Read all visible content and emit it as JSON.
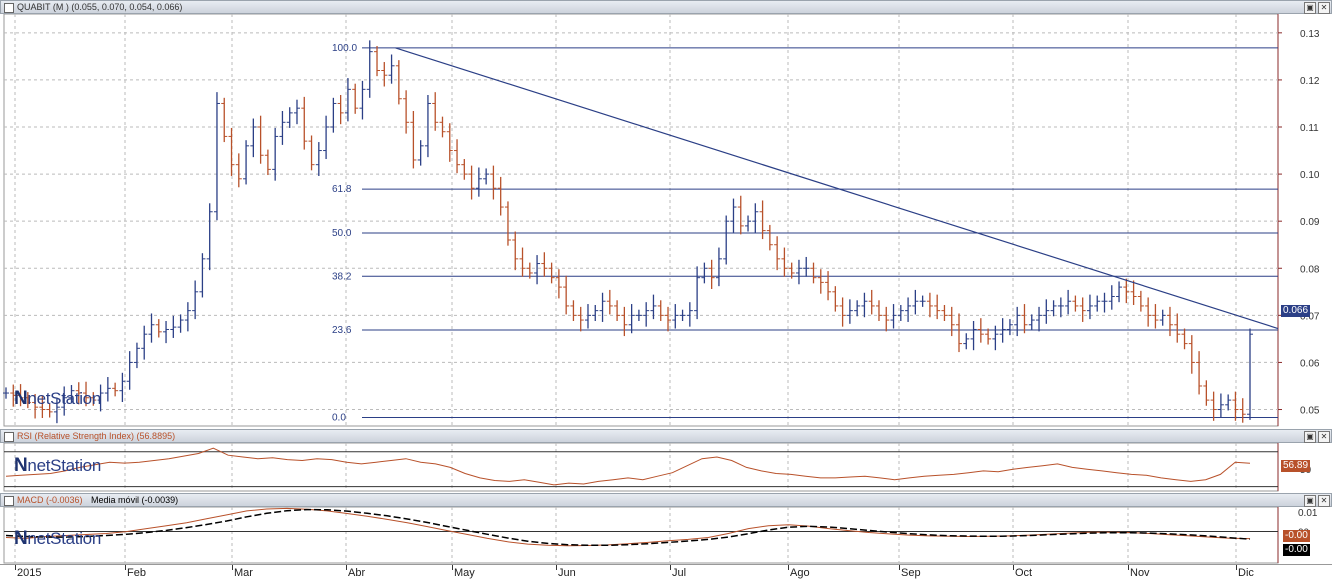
{
  "panels": {
    "price": {
      "title": "QUABIT (M ) (0.055, 0.070, 0.054, 0.066)"
    },
    "rsi": {
      "title": "RSI (Relative Strength Index) (56.8895)"
    },
    "macd": {
      "title_a": "MACD (-0.0036)",
      "title_b": "Media móvil (-0.0039)"
    }
  },
  "logo": {
    "mark": "N",
    "text": "netStation"
  },
  "window_buttons": {
    "restore": "▣",
    "close": "✕"
  },
  "tags": {
    "price_last": "0.066",
    "rsi_last": "56.89",
    "macd_a": "-0.00",
    "macd_b": "-0.00"
  },
  "colors": {
    "up": "#2b3f86",
    "down": "#b8512a",
    "line": "#2b3f86",
    "rsi": "#b8512a",
    "macd": "#b8512a",
    "signal": "#000000"
  },
  "chart_data": [
    {
      "type": "bar",
      "subtype": "ohlc",
      "ylim": [
        0.0465,
        0.134
      ],
      "yticks": [
        0.05,
        0.06,
        0.07,
        0.08,
        0.09,
        0.1,
        0.11,
        0.12,
        0.13
      ],
      "ytick_labels": [
        "0.05",
        "0.06",
        "0.07",
        "0.08",
        "0.09",
        "0.10",
        "0.11",
        "0.12",
        "0.13"
      ],
      "xlabels": [
        "2015",
        "Feb",
        "Mar",
        "Abr",
        "May",
        "Jun",
        "Jul",
        "Ago",
        "Sep",
        "Oct",
        "Nov",
        "Dic"
      ],
      "grid": true,
      "close": [
        0.0535,
        0.053,
        0.0525,
        0.0515,
        0.0505,
        0.05,
        0.0495,
        0.0505,
        0.0525,
        0.054,
        0.0535,
        0.0525,
        0.052,
        0.0535,
        0.0545,
        0.054,
        0.056,
        0.06,
        0.063,
        0.066,
        0.068,
        0.0665,
        0.067,
        0.0675,
        0.069,
        0.071,
        0.075,
        0.082,
        0.092,
        0.115,
        0.108,
        0.102,
        0.099,
        0.106,
        0.11,
        0.104,
        0.101,
        0.108,
        0.111,
        0.113,
        0.114,
        0.107,
        0.102,
        0.105,
        0.11,
        0.115,
        0.113,
        0.118,
        0.114,
        0.118,
        0.126,
        0.122,
        0.121,
        0.123,
        0.116,
        0.111,
        0.103,
        0.106,
        0.115,
        0.111,
        0.109,
        0.105,
        0.102,
        0.1,
        0.097,
        0.099,
        0.1,
        0.097,
        0.093,
        0.086,
        0.082,
        0.08,
        0.079,
        0.081,
        0.08,
        0.078,
        0.076,
        0.072,
        0.07,
        0.069,
        0.07,
        0.071,
        0.073,
        0.072,
        0.07,
        0.068,
        0.07,
        0.07,
        0.071,
        0.072,
        0.07,
        0.069,
        0.07,
        0.07,
        0.071,
        0.078,
        0.08,
        0.078,
        0.082,
        0.09,
        0.093,
        0.089,
        0.09,
        0.092,
        0.088,
        0.085,
        0.082,
        0.08,
        0.079,
        0.08,
        0.08,
        0.078,
        0.077,
        0.075,
        0.072,
        0.07,
        0.071,
        0.072,
        0.073,
        0.072,
        0.07,
        0.069,
        0.07,
        0.071,
        0.072,
        0.073,
        0.073,
        0.072,
        0.071,
        0.07,
        0.068,
        0.064,
        0.065,
        0.067,
        0.066,
        0.065,
        0.066,
        0.067,
        0.068,
        0.07,
        0.068,
        0.069,
        0.07,
        0.071,
        0.072,
        0.072,
        0.073,
        0.072,
        0.071,
        0.072,
        0.073,
        0.073,
        0.074,
        0.076,
        0.075,
        0.074,
        0.072,
        0.07,
        0.069,
        0.07,
        0.068,
        0.066,
        0.064,
        0.06,
        0.055,
        0.052,
        0.05,
        0.051,
        0.052,
        0.05,
        0.049,
        0.066
      ],
      "reference_lines": [
        {
          "label": "100.0",
          "value": 0.1268
        },
        {
          "label": "61.8",
          "value": 0.0968
        },
        {
          "label": "50.0",
          "value": 0.0875
        },
        {
          "label": "38.2",
          "value": 0.0783
        },
        {
          "label": "23.6",
          "value": 0.0669
        },
        {
          "label": "0.0",
          "value": 0.0483
        }
      ],
      "trendline": {
        "from": [
          53,
          0.1268
        ],
        "to": [
          177,
          0.0672
        ]
      }
    },
    {
      "type": "line",
      "name": "RSI",
      "ylim": [
        25,
        80
      ],
      "yticks": [
        50
      ],
      "ytick_labels": [
        "50"
      ],
      "levels": [
        70,
        30
      ],
      "values": [
        42,
        43,
        44,
        45,
        48,
        52,
        55,
        58,
        57,
        58,
        60,
        62,
        65,
        68,
        74,
        66,
        64,
        62,
        63,
        61,
        60,
        62,
        61,
        58,
        56,
        58,
        60,
        62,
        58,
        56,
        52,
        45,
        40,
        37,
        36,
        38,
        35,
        32,
        34,
        33,
        36,
        38,
        40,
        38,
        42,
        46,
        54,
        62,
        64,
        60,
        52,
        48,
        45,
        44,
        42,
        40,
        40,
        41,
        42,
        40,
        38,
        40,
        42,
        43,
        44,
        46,
        48,
        47,
        50,
        52,
        54,
        56,
        52,
        50,
        48,
        46,
        44,
        43,
        40,
        38,
        36,
        38,
        44,
        58,
        56.89
      ]
    },
    {
      "type": "line",
      "name": "MACD",
      "ylim": [
        -0.016,
        0.0125
      ],
      "yticks": [
        0.01,
        0.0
      ],
      "ytick_labels": [
        "0.01",
        "00"
      ],
      "zero_line": 0,
      "series": [
        {
          "values": [
            -0.003,
            -0.0035,
            -0.0025,
            -0.002,
            -0.0015,
            -0.001,
            0.0,
            0.0015,
            0.003,
            0.0045,
            0.0065,
            0.0085,
            0.0105,
            0.0115,
            0.0118,
            0.0114,
            0.0105,
            0.0092,
            0.0078,
            0.0062,
            0.0045,
            0.0025,
            0.0005,
            -0.0015,
            -0.0035,
            -0.0052,
            -0.0064,
            -0.007,
            -0.0072,
            -0.0071,
            -0.0068,
            -0.0062,
            -0.0055,
            -0.0047,
            -0.004,
            -0.003,
            -0.001,
            0.0015,
            0.003,
            0.0035,
            0.0028,
            0.0015,
            0.0005,
            -0.0005,
            -0.0012,
            -0.0018,
            -0.0022,
            -0.0024,
            -0.0025,
            -0.0024,
            -0.0022,
            -0.0018,
            -0.0013,
            -0.0008,
            -0.0004,
            -0.0003,
            -0.0005,
            -0.001,
            -0.0016,
            -0.0022,
            -0.0028,
            -0.0034,
            -0.0036
          ]
        },
        {
          "values": [
            -0.002,
            -0.0025,
            -0.0028,
            -0.0028,
            -0.0025,
            -0.002,
            -0.0014,
            -0.0005,
            0.0006,
            0.002,
            0.0036,
            0.0054,
            0.0075,
            0.0093,
            0.0106,
            0.0112,
            0.0111,
            0.0104,
            0.0093,
            0.008,
            0.0064,
            0.0046,
            0.0026,
            0.0006,
            -0.0014,
            -0.0033,
            -0.0049,
            -0.006,
            -0.0067,
            -0.007,
            -0.007,
            -0.0067,
            -0.0062,
            -0.0055,
            -0.0048,
            -0.004,
            -0.0028,
            -0.0011,
            0.0008,
            0.0022,
            0.0027,
            0.0023,
            0.0015,
            0.0006,
            -0.0003,
            -0.0011,
            -0.0017,
            -0.0021,
            -0.0023,
            -0.0024,
            -0.0023,
            -0.002,
            -0.0016,
            -0.0012,
            -0.0008,
            -0.0006,
            -0.0006,
            -0.0008,
            -0.0012,
            -0.0017,
            -0.0023,
            -0.0031,
            -0.0039
          ]
        }
      ]
    }
  ]
}
